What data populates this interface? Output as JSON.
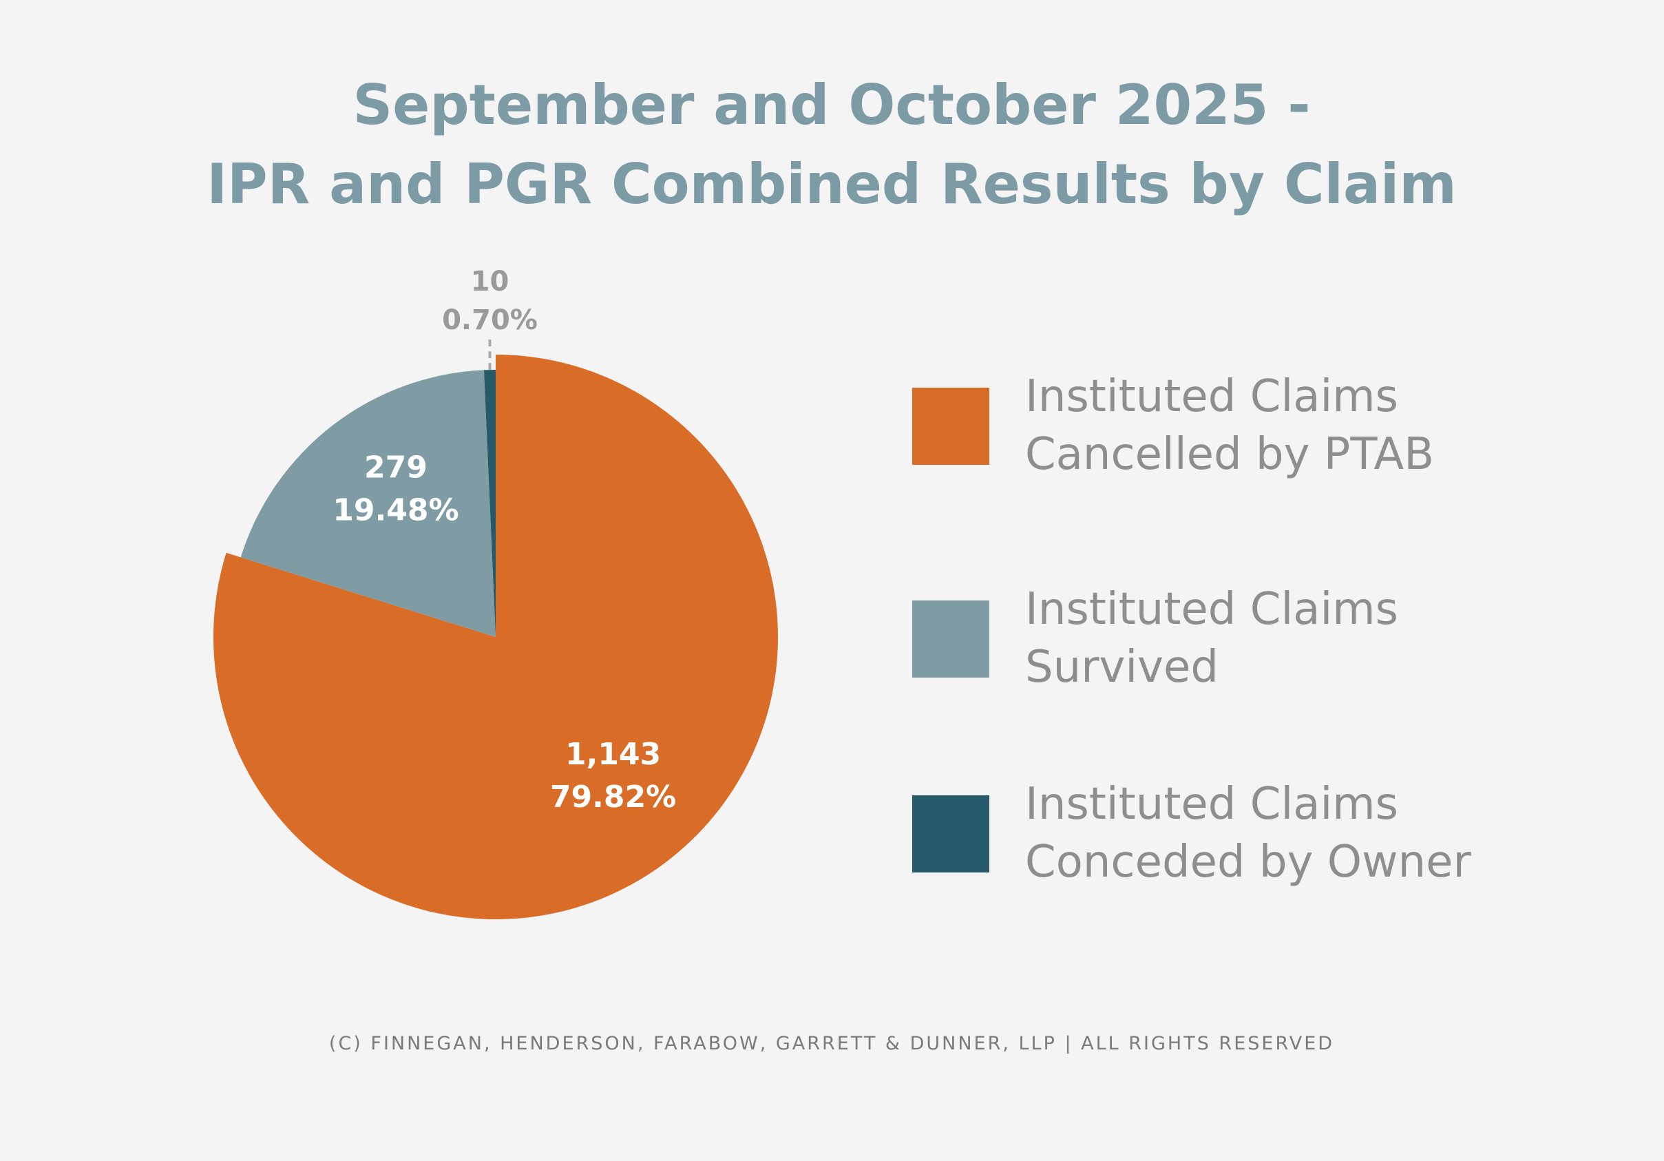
{
  "chart_data": {
    "type": "pie",
    "title_lines": [
      "September and October 2025 -",
      "IPR and PGR Combined Results by Claim"
    ],
    "slices": [
      {
        "name_lines": [
          "Instituted Claims",
          "Cancelled by PTAB"
        ],
        "value": 1143,
        "value_label": "1,143",
        "percent": 79.82,
        "percent_label": "79.82%",
        "color": "#d96c27"
      },
      {
        "name_lines": [
          "Instituted Claims",
          "Survived"
        ],
        "value": 279,
        "value_label": "279",
        "percent": 19.48,
        "percent_label": "19.48%",
        "color": "#7f9ca5"
      },
      {
        "name_lines": [
          "Instituted Claims",
          "Conceded by Owner"
        ],
        "value": 10,
        "value_label": "10",
        "percent": 0.7,
        "percent_label": "0.70%",
        "color": "#265a6a"
      }
    ],
    "legend_position": "right"
  },
  "footer": "(C) FINNEGAN, HENDERSON, FARABOW, GARRETT & DUNNER, LLP | ALL RIGHTS RESERVED"
}
